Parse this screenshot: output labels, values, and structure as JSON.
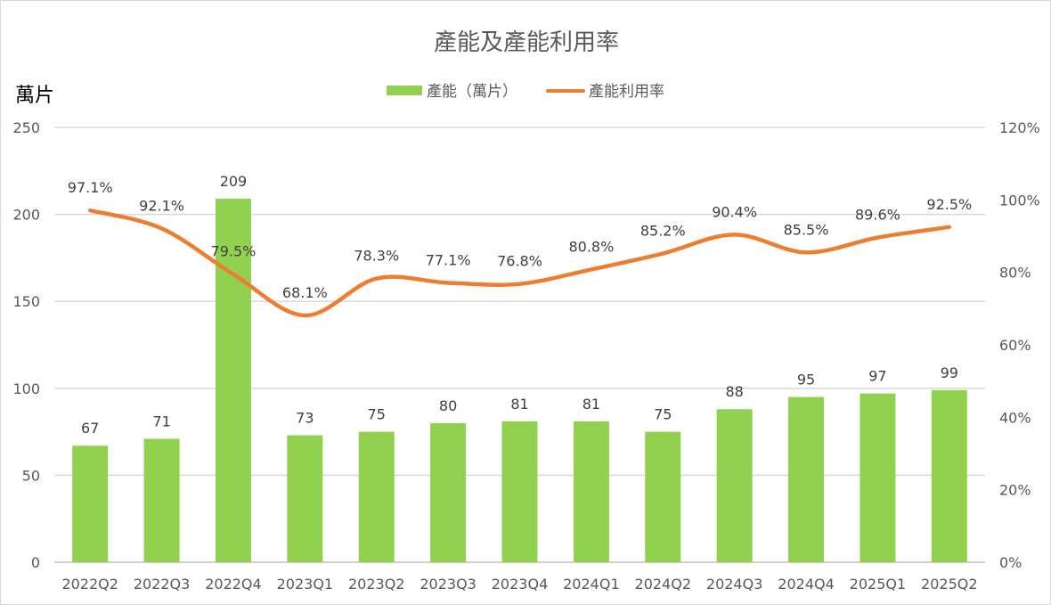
{
  "chart_data": {
    "type": "bar+line",
    "title": "產能及產能利用率",
    "ylabel": "萬片",
    "categories": [
      "2022Q2",
      "2022Q3",
      "2022Q4",
      "2023Q1",
      "2023Q2",
      "2023Q3",
      "2023Q4",
      "2024Q1",
      "2024Q2",
      "2024Q3",
      "2024Q4",
      "2025Q1",
      "2025Q2"
    ],
    "series": [
      {
        "name": "產能（萬片）",
        "type": "bar",
        "axis": "left",
        "color": "#92D050",
        "values": [
          67,
          71,
          209,
          73,
          75,
          80,
          81,
          81,
          75,
          88,
          95,
          97,
          99
        ],
        "labels": [
          "67",
          "71",
          "209",
          "73",
          "75",
          "80",
          "81",
          "81",
          "75",
          "88",
          "95",
          "97",
          "99"
        ]
      },
      {
        "name": "產能利用率",
        "type": "line",
        "smooth": true,
        "axis": "right",
        "color": "#ED7D31",
        "values": [
          97.1,
          92.1,
          79.5,
          68.1,
          78.3,
          77.1,
          76.8,
          80.8,
          85.2,
          90.4,
          85.5,
          89.6,
          92.5
        ],
        "labels": [
          "97.1%",
          "92.1%",
          "79.5%",
          "68.1%",
          "78.3%",
          "77.1%",
          "76.8%",
          "80.8%",
          "85.2%",
          "90.4%",
          "85.5%",
          "89.6%",
          "92.5%"
        ]
      }
    ],
    "ylim": [
      0,
      250
    ],
    "yticks": [
      "0",
      "50",
      "100",
      "150",
      "200",
      "250"
    ],
    "y2lim": [
      0,
      120
    ],
    "y2ticks": [
      "0%",
      "20%",
      "40%",
      "60%",
      "80%",
      "100%",
      "120%"
    ],
    "grid": true,
    "legend": "top"
  }
}
